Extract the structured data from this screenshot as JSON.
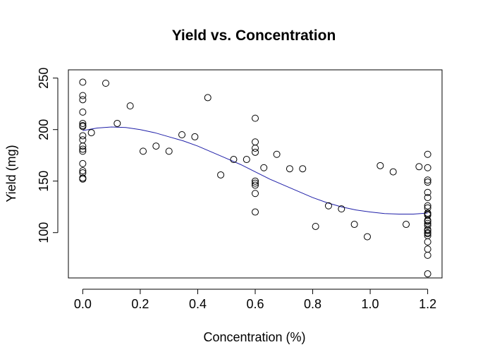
{
  "chart_data": {
    "type": "scatter",
    "title": "Yield vs. Concentration",
    "xlabel": "Concentration (%)",
    "ylabel": "Yield (mg)",
    "xlim": [
      -0.05,
      1.25
    ],
    "ylim": [
      56,
      258
    ],
    "xticks": [
      0.0,
      0.2,
      0.4,
      0.6,
      0.8,
      1.0,
      1.2
    ],
    "xtick_labels": [
      "0.0",
      "0.2",
      "0.4",
      "0.6",
      "0.8",
      "1.0",
      "1.2"
    ],
    "yticks": [
      100,
      150,
      200,
      250
    ],
    "ytick_labels": [
      "100",
      "150",
      "200",
      "250"
    ],
    "grid": false,
    "legend": "none",
    "colors": {
      "points": "#000000",
      "fit_line": "#1f1fa8"
    },
    "series": [
      {
        "type": "scatter",
        "x": [
          0.0,
          0.0,
          0.0,
          0.0,
          0.0,
          0.0,
          0.0,
          0.0,
          0.0,
          0.0,
          0.0,
          0.0,
          0.0,
          0.0,
          0.0,
          0.0,
          0.0,
          0.03,
          0.08,
          0.12,
          0.165,
          0.21,
          0.255,
          0.3,
          0.345,
          0.39,
          0.435,
          0.48,
          0.525,
          0.57,
          0.6,
          0.6,
          0.6,
          0.6,
          0.6,
          0.6,
          0.6,
          0.6,
          0.6,
          0.63,
          0.675,
          0.72,
          0.765,
          0.81,
          0.855,
          0.9,
          0.945,
          0.99,
          1.035,
          1.08,
          1.125,
          1.17,
          1.2,
          1.2,
          1.2,
          1.2,
          1.2,
          1.2,
          1.2,
          1.2,
          1.2,
          1.2,
          1.2,
          1.2,
          1.2,
          1.2,
          1.2,
          1.2,
          1.2,
          1.2,
          1.2,
          1.2,
          1.2,
          1.2,
          1.2,
          1.2
        ],
        "y": [
          246,
          233,
          229,
          217,
          206,
          204,
          203,
          194,
          190,
          184,
          181,
          179,
          167,
          160,
          158,
          153,
          152,
          197,
          245,
          206,
          223,
          179,
          184,
          179,
          195,
          193,
          231,
          156,
          171,
          171,
          211,
          188,
          182,
          178,
          150,
          148,
          146,
          138,
          120,
          163,
          176,
          162,
          162,
          106,
          126,
          123,
          108,
          96,
          165,
          159,
          108,
          164,
          176,
          163,
          151,
          149,
          139,
          134,
          126,
          124,
          119,
          117,
          112,
          109,
          107,
          103,
          99,
          97,
          91,
          78,
          60,
          102,
          118,
          111,
          100,
          84
        ]
      },
      {
        "type": "line",
        "name": "",
        "x": [
          0.0,
          0.05,
          0.1,
          0.15,
          0.2,
          0.25,
          0.3,
          0.35,
          0.4,
          0.45,
          0.5,
          0.55,
          0.6,
          0.65,
          0.7,
          0.75,
          0.8,
          0.85,
          0.9,
          0.95,
          1.0,
          1.05,
          1.1,
          1.15,
          1.2
        ],
        "y": [
          199,
          201.5,
          202.5,
          202,
          200,
          197,
          193,
          189,
          184,
          178,
          172,
          166,
          159,
          152,
          146,
          140,
          134,
          129,
          125,
          122,
          120,
          118.5,
          118,
          118,
          119
        ]
      }
    ]
  }
}
